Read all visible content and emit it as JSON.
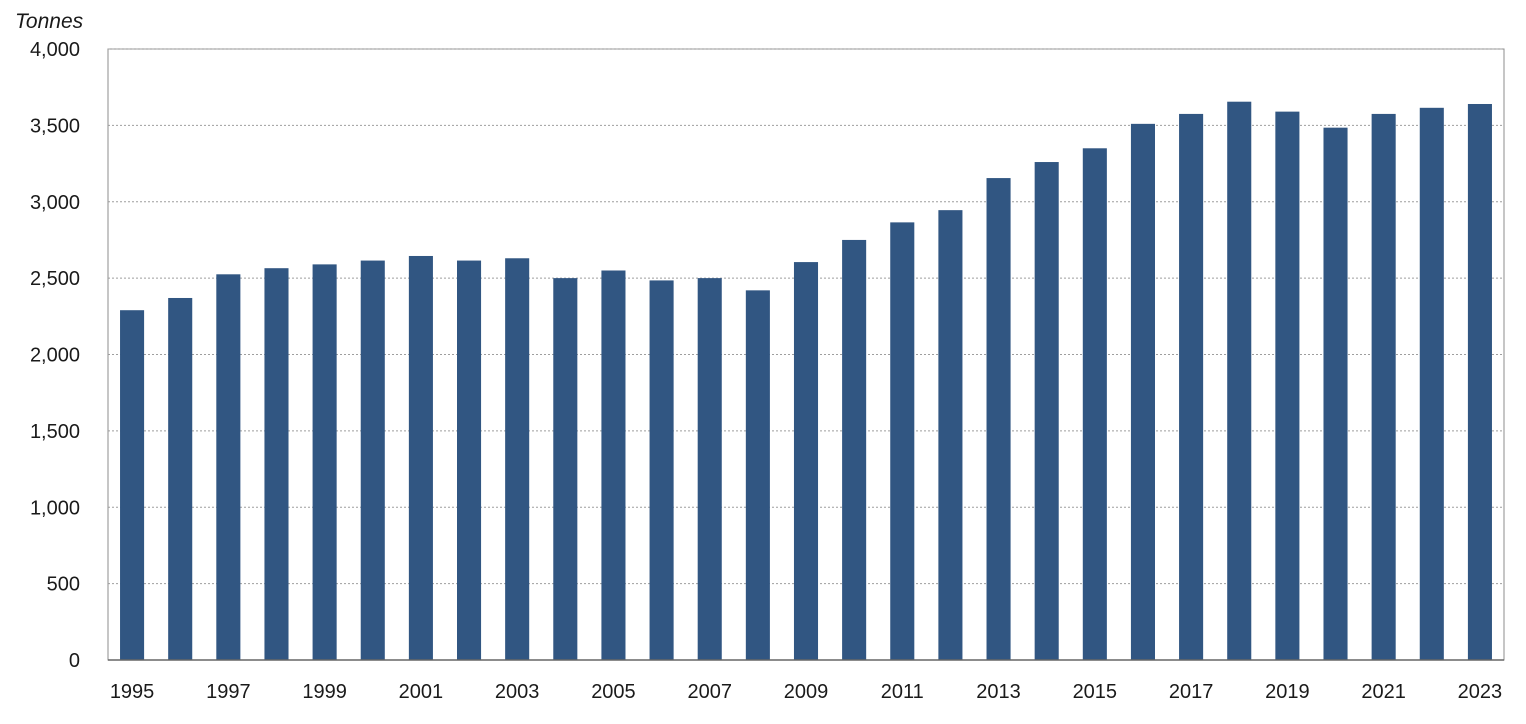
{
  "chart_data": {
    "type": "bar",
    "title": "",
    "xlabel": "",
    "ylabel": "Tonnes",
    "categories": [
      "1995",
      "1996",
      "1997",
      "1998",
      "1999",
      "2000",
      "2001",
      "2002",
      "2003",
      "2004",
      "2005",
      "2006",
      "2007",
      "2008",
      "2009",
      "2010",
      "2011",
      "2012",
      "2013",
      "2014",
      "2015",
      "2016",
      "2017",
      "2018",
      "2019",
      "2020",
      "2021",
      "2022",
      "2023"
    ],
    "x_tick_labels": [
      "1995",
      "1997",
      "1999",
      "2001",
      "2003",
      "2005",
      "2007",
      "2009",
      "2011",
      "2013",
      "2015",
      "2017",
      "2019",
      "2021",
      "2023"
    ],
    "values": [
      2290,
      2370,
      2525,
      2565,
      2590,
      2615,
      2645,
      2615,
      2630,
      2500,
      2550,
      2485,
      2500,
      2420,
      2605,
      2750,
      2865,
      2945,
      3155,
      3260,
      3350,
      3510,
      3575,
      3655,
      3590,
      3485,
      3575,
      3615,
      3640
    ],
    "ylim": [
      0,
      4000
    ],
    "y_ticks": [
      0,
      500,
      1000,
      1500,
      2000,
      2500,
      3000,
      3500,
      4000
    ],
    "y_tick_labels": [
      "0",
      "500",
      "1,000",
      "1,500",
      "2,000",
      "2,500",
      "3,000",
      "3,500",
      "4,000"
    ],
    "grid": true,
    "bar_color": "#315682"
  }
}
